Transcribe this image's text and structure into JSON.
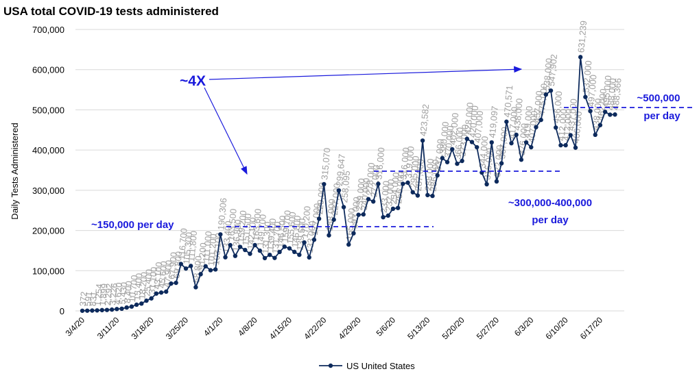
{
  "chart_data": {
    "type": "line",
    "title": "USA total COVID-19 tests administered",
    "y_label": "Daily Tests Administered",
    "categories": [
      "3/4/20",
      null,
      null,
      null,
      null,
      null,
      null,
      "3/11/20",
      null,
      null,
      null,
      null,
      null,
      null,
      "3/18/20",
      null,
      null,
      null,
      null,
      null,
      null,
      "3/25/20",
      null,
      null,
      null,
      null,
      null,
      null,
      "4/1/20",
      null,
      null,
      null,
      null,
      null,
      null,
      "4/8/20",
      null,
      null,
      null,
      null,
      null,
      null,
      "4/15/20",
      null,
      null,
      null,
      null,
      null,
      null,
      "4/22/20",
      null,
      null,
      null,
      null,
      null,
      null,
      "4/29/20",
      null,
      null,
      null,
      null,
      null,
      null,
      "5/6/20",
      null,
      null,
      null,
      null,
      null,
      null,
      "5/13/20",
      null,
      null,
      null,
      null,
      null,
      null,
      "5/20/20",
      null,
      null,
      null,
      null,
      null,
      null,
      "5/27/20",
      null,
      null,
      null,
      null,
      null,
      null,
      "6/3/20",
      null,
      null,
      null,
      null,
      null,
      null,
      "6/10/20",
      null,
      null,
      null,
      null,
      null,
      null,
      "6/17/20",
      null,
      null,
      null
    ],
    "series": [
      {
        "name": "US United States",
        "color": "#0d2a5c",
        "values": [
          372,
          591,
          831,
          1254,
          1899,
          2292,
          3226,
          4620,
          5430,
          8400,
          10700,
          15400,
          18200,
          25400,
          31100,
          43100,
          45600,
          47900,
          67900,
          69800,
          116700,
          105300,
          111800,
          58800,
          91200,
          111000,
          101200,
          103100,
          190306,
          133400,
          163500,
          136800,
          159200,
          151500,
          142100,
          163600,
          149700,
          131300,
          139400,
          131700,
          146500,
          159700,
          155600,
          146800,
          139500,
          170200,
          133000,
          177000,
          229000,
          315070,
          188000,
          227000,
          299647,
          258095,
          165000,
          193000,
          239000,
          240000,
          278000,
          272000,
          316000,
          233000,
          237000,
          254000,
          256000,
          316000,
          319000,
          295000,
          287000,
          423582,
          288000,
          286000,
          337000,
          380000,
          370000,
          402000,
          366000,
          373000,
          428000,
          420000,
          407000,
          344000,
          315000,
          419097,
          322000,
          367000,
          470571,
          417000,
          438000,
          376000,
          419000,
          407000,
          457000,
          475000,
          538000,
          547902,
          456000,
          412000,
          412000,
          437000,
          406000,
          631239,
          532000,
          497000,
          438000,
          462000,
          495000,
          488000,
          488366
        ],
        "value_labels": [
          "372",
          "591",
          "831",
          "1,254",
          "1,899",
          "2,292",
          "3,226",
          "4,620",
          "5,430",
          "8,400",
          "10,700",
          "15,400",
          "18,200",
          "25,400",
          "31,100",
          "43,100",
          "45,600",
          "47,900",
          "67,900",
          "69,800",
          "116,700",
          "105,300",
          "111,800",
          "58,800",
          "91,200",
          "111,000",
          "101,200",
          "103,100",
          "190,306",
          "133,400",
          "163,500",
          "136,800",
          "159,200",
          "151,500",
          "142,100",
          "163,600",
          "149,700",
          "131,300",
          "139,400",
          "131,700",
          "146,500",
          "159,700",
          "155,600",
          "146,800",
          "139,500",
          "170,200",
          "133,000",
          "177,000",
          "229,000",
          "315,070",
          "188,000",
          "227,000",
          "299,647",
          "258,095",
          "165,000",
          "193,000",
          "239,000",
          "240,000",
          "278,000",
          "272,000",
          "316,000",
          "233,000",
          "237,000",
          "254,000",
          "256,000",
          "316,000",
          "319,000",
          "295,000",
          "287,000",
          "423,582",
          "288,000",
          "286,000",
          "337,000",
          "380,000",
          "370,000",
          "402,000",
          "366,000",
          "373,000",
          "428,000",
          "420,000",
          "407,000",
          "344,000",
          "315,000",
          "419,097",
          "322,000",
          "367,000",
          "470,571",
          "417,000",
          "438,000",
          "376,000",
          "419,000",
          "407,000",
          "457,000",
          "475,000",
          "538,000",
          "547,902",
          "456,000",
          "412,000",
          "412,000",
          "437,000",
          "406,000",
          "631,239",
          "532,000",
          "497,000",
          "438,000",
          "462,000",
          "495,000",
          "488,000",
          "488,366"
        ]
      }
    ],
    "ylim": [
      0,
      700000
    ],
    "yticks": [
      0,
      {
        "value": 100000,
        "label": "100,000"
      },
      {
        "value": 200000,
        "label": "200,000"
      },
      {
        "value": 300000,
        "label": "300,000"
      },
      {
        "value": 400000,
        "label": "400,000"
      },
      {
        "value": 500000,
        "label": "500,000"
      },
      {
        "value": 600000,
        "label": "600,000"
      },
      {
        "value": 700000,
        "label": "700,000"
      }
    ],
    "grid": true,
    "legend": "bottom",
    "annotations": {
      "growth": "~4X",
      "low": "~150,000 per day",
      "mid": [
        "~300,000-400,000",
        "per day"
      ],
      "high": [
        "~500,000",
        "per day"
      ]
    }
  }
}
